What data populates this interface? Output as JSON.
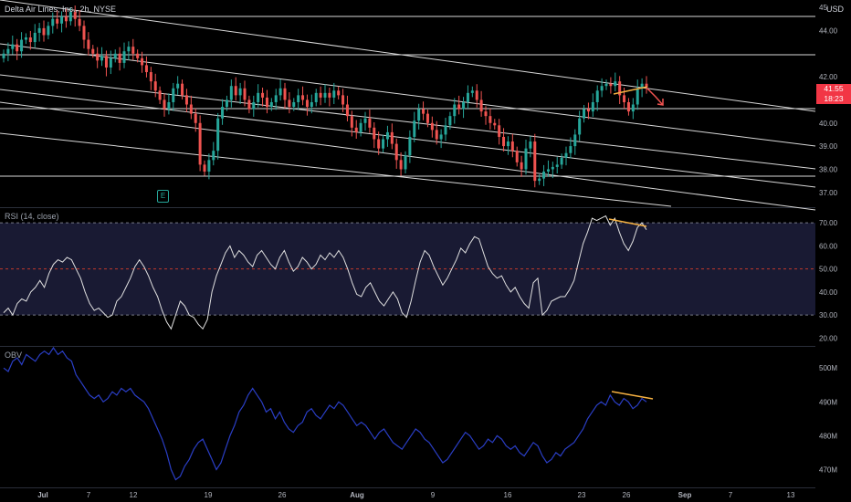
{
  "header": {
    "symbol_line": "Delta Air Lines, Inc., 2h, NYSE",
    "currency": "USD"
  },
  "price_box": {
    "price": "41.55",
    "countdown": "18:23",
    "color": "#f23645"
  },
  "earnings_marker": {
    "label": "E",
    "color": "#26a69a"
  },
  "colors": {
    "background": "#000000",
    "up": "#26a69a",
    "down": "#ef5350",
    "rsi_line": "#e0e0e0",
    "rsi_band": "#191a33",
    "rsi_mid": "#c0392b",
    "obv_line": "#2a3ec5",
    "trend_lines": "#d9d9d9",
    "divergence": "#f5b041",
    "arrow": "#ef5350"
  },
  "chart_data": [
    {
      "type": "candlestick",
      "name": "price",
      "title": "Delta Air Lines, Inc., 2h, NYSE",
      "ylabel": "USD",
      "ylim": [
        36.4,
        45.2
      ],
      "yticks": [
        37.0,
        38.0,
        39.0,
        40.0,
        41.0,
        42.0,
        44.0,
        45.0
      ],
      "ytick_labels": [
        "37.00",
        "38.00",
        "39.00",
        "40.00",
        "41.00",
        "42.00",
        "44.00",
        "45"
      ],
      "x_labels": [
        "Jul",
        "7",
        "12",
        "19",
        "26",
        "Aug",
        "9",
        "16",
        "23",
        "26",
        "Sep",
        "7",
        "13"
      ],
      "close": [
        43.0,
        43.2,
        43.4,
        43.1,
        43.6,
        43.7,
        43.5,
        43.9,
        44.1,
        43.8,
        44.2,
        44.5,
        44.3,
        44.6,
        44.4,
        44.8,
        44.5,
        44.2,
        43.6,
        43.2,
        43.0,
        42.7,
        42.9,
        42.4,
        42.8,
        43.0,
        42.6,
        43.1,
        43.3,
        43.0,
        42.8,
        42.5,
        42.2,
        41.8,
        41.4,
        41.0,
        40.6,
        40.9,
        41.5,
        41.7,
        41.2,
        40.8,
        40.4,
        40.0,
        38.2,
        37.9,
        38.4,
        38.8,
        40.2,
        40.7,
        41.0,
        41.6,
        41.2,
        41.5,
        41.0,
        40.6,
        40.9,
        41.3,
        41.1,
        40.7,
        40.9,
        41.2,
        41.5,
        41.0,
        40.7,
        40.9,
        41.2,
        41.0,
        40.7,
        40.9,
        41.3,
        41.1,
        41.3,
        41.1,
        41.4,
        41.2,
        40.8,
        40.3,
        39.8,
        39.6,
        40.0,
        40.2,
        39.8,
        39.3,
        38.9,
        39.3,
        39.6,
        39.1,
        38.4,
        38.0,
        38.6,
        39.4,
        40.1,
        40.6,
        40.4,
        40.0,
        39.7,
        39.3,
        39.5,
        39.9,
        40.3,
        40.8,
        40.6,
        40.9,
        41.3,
        41.4,
        41.0,
        40.5,
        40.3,
        40.0,
        39.9,
        39.4,
        39.0,
        39.2,
        38.8,
        38.3,
        38.0,
        38.9,
        39.2,
        37.5,
        37.6,
        37.9,
        38.0,
        38.1,
        38.2,
        38.5,
        38.7,
        39.0,
        39.5,
        40.2,
        40.6,
        40.5,
        40.9,
        41.4,
        41.6,
        41.7,
        41.6,
        41.8,
        41.2,
        40.9,
        40.5,
        40.8,
        41.5,
        41.7,
        41.55
      ],
      "ranges": [
        "2024-07-01T14:00",
        "2024-08-28T12:00"
      ]
    },
    {
      "type": "line",
      "name": "RSI (14, close)",
      "title": "RSI (14, close)",
      "ylim": [
        17,
        76
      ],
      "yticks": [
        20,
        30,
        40,
        50,
        60,
        70
      ],
      "ytick_labels": [
        "20.00",
        "30.00",
        "40.00",
        "50.00",
        "60.00",
        "70.00"
      ],
      "bands": {
        "upper": 70,
        "middle": 50,
        "lower": 30
      },
      "values": [
        31,
        33,
        30,
        35,
        37,
        36,
        40,
        42,
        45,
        42,
        48,
        52,
        54,
        53,
        55,
        54,
        50,
        46,
        40,
        35,
        32,
        33,
        31,
        29,
        30,
        36,
        38,
        42,
        46,
        51,
        54,
        51,
        47,
        42,
        38,
        32,
        27,
        24,
        30,
        36,
        34,
        30,
        29,
        26,
        24,
        28,
        40,
        47,
        52,
        57,
        60,
        55,
        58,
        56,
        53,
        51,
        56,
        58,
        55,
        52,
        50,
        55,
        58,
        53,
        49,
        51,
        55,
        53,
        50,
        52,
        56,
        54,
        57,
        55,
        58,
        55,
        50,
        44,
        39,
        38,
        42,
        44,
        40,
        36,
        34,
        37,
        40,
        37,
        31,
        29,
        36,
        45,
        53,
        58,
        56,
        51,
        47,
        43,
        46,
        50,
        54,
        59,
        57,
        61,
        64,
        63,
        57,
        51,
        48,
        46,
        47,
        43,
        40,
        42,
        38,
        35,
        33,
        44,
        46,
        30,
        32,
        36,
        37,
        38,
        38,
        41,
        45,
        53,
        61,
        66,
        72,
        71,
        72,
        73,
        69,
        72,
        66,
        61,
        58,
        62,
        68,
        70,
        67
      ]
    },
    {
      "type": "line",
      "name": "OBV",
      "title": "OBV",
      "ylim": [
        465,
        506
      ],
      "yticks": [
        470,
        480,
        490,
        500
      ],
      "ytick_labels": [
        "470M",
        "480M",
        "490M",
        "500M"
      ],
      "values": [
        500,
        499,
        502,
        503,
        501,
        504,
        503,
        502,
        504,
        505,
        504,
        506,
        504,
        505,
        503,
        502,
        498,
        496,
        494,
        492,
        491,
        492,
        490,
        491,
        493,
        492,
        494,
        493,
        494,
        492,
        491,
        490,
        488,
        485,
        482,
        479,
        475,
        470,
        467,
        468,
        471,
        473,
        476,
        478,
        479,
        476,
        473,
        470,
        472,
        476,
        480,
        483,
        487,
        489,
        492,
        494,
        492,
        490,
        487,
        488,
        485,
        487,
        484,
        482,
        481,
        483,
        484,
        487,
        488,
        486,
        485,
        487,
        489,
        488,
        490,
        489,
        487,
        485,
        483,
        484,
        483,
        481,
        479,
        481,
        482,
        480,
        478,
        477,
        476,
        478,
        480,
        482,
        481,
        479,
        478,
        476,
        474,
        472,
        473,
        475,
        477,
        479,
        481,
        480,
        478,
        476,
        477,
        479,
        478,
        480,
        479,
        477,
        476,
        477,
        475,
        474,
        476,
        478,
        477,
        474,
        472,
        473,
        475,
        474,
        476,
        477,
        478,
        480,
        482,
        485,
        487,
        489,
        490,
        489,
        492,
        490,
        489,
        491,
        490,
        488,
        489,
        491,
        490
      ]
    }
  ]
}
